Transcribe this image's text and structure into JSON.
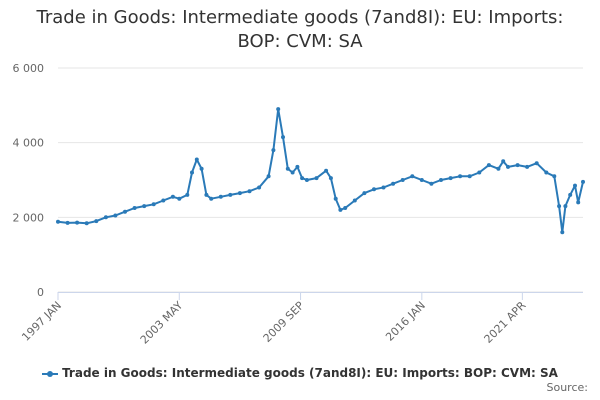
{
  "chart_data": {
    "type": "line",
    "title_lines": [
      "Trade in Goods: Intermediate goods (7and8I): EU: Imports:",
      "BOP: CVM: SA"
    ],
    "xlabel": "",
    "ylabel": "",
    "ylim": [
      0,
      6000
    ],
    "y_ticks": [
      0,
      2000,
      4000,
      6000
    ],
    "y_tick_labels": [
      "0",
      "2 000",
      "4 000",
      "6 000"
    ],
    "x_tick_labels": [
      "1997 JAN",
      "2003 MAY",
      "2009 SEP",
      "2016 JAN",
      "2021 APR"
    ],
    "x_tick_dates": [
      "1997-01",
      "2003-05",
      "2009-09",
      "2016-01",
      "2021-04"
    ],
    "grid": "horizontal",
    "legend_position": "bottom",
    "colors": {
      "series": "#2a7ab8",
      "grid": "#e6e6e6",
      "axis": "#ccd6eb"
    },
    "series": [
      {
        "name": "Trade in Goods: Intermediate goods (7and8I): EU: Imports: BOP: CVM: SA",
        "points": [
          [
            "1997-01",
            1880
          ],
          [
            "1997-07",
            1850
          ],
          [
            "1998-01",
            1860
          ],
          [
            "1998-07",
            1840
          ],
          [
            "1999-01",
            1900
          ],
          [
            "1999-07",
            2000
          ],
          [
            "2000-01",
            2050
          ],
          [
            "2000-07",
            2150
          ],
          [
            "2001-01",
            2250
          ],
          [
            "2001-07",
            2300
          ],
          [
            "2002-01",
            2350
          ],
          [
            "2002-07",
            2450
          ],
          [
            "2003-01",
            2550
          ],
          [
            "2003-05",
            2500
          ],
          [
            "2003-10",
            2600
          ],
          [
            "2004-01",
            3200
          ],
          [
            "2004-04",
            3550
          ],
          [
            "2004-07",
            3300
          ],
          [
            "2004-10",
            2600
          ],
          [
            "2005-01",
            2500
          ],
          [
            "2005-07",
            2550
          ],
          [
            "2006-01",
            2600
          ],
          [
            "2006-07",
            2650
          ],
          [
            "2007-01",
            2700
          ],
          [
            "2007-07",
            2800
          ],
          [
            "2008-01",
            3100
          ],
          [
            "2008-04",
            3800
          ],
          [
            "2008-07",
            4900
          ],
          [
            "2008-10",
            4150
          ],
          [
            "2009-01",
            3300
          ],
          [
            "2009-04",
            3200
          ],
          [
            "2009-07",
            3350
          ],
          [
            "2009-10",
            3050
          ],
          [
            "2010-01",
            3000
          ],
          [
            "2010-07",
            3050
          ],
          [
            "2011-01",
            3250
          ],
          [
            "2011-04",
            3050
          ],
          [
            "2011-07",
            2500
          ],
          [
            "2011-10",
            2200
          ],
          [
            "2012-01",
            2250
          ],
          [
            "2012-07",
            2450
          ],
          [
            "2013-01",
            2650
          ],
          [
            "2013-07",
            2750
          ],
          [
            "2014-01",
            2800
          ],
          [
            "2014-07",
            2900
          ],
          [
            "2015-01",
            3000
          ],
          [
            "2015-07",
            3100
          ],
          [
            "2016-01",
            3000
          ],
          [
            "2016-07",
            2900
          ],
          [
            "2017-01",
            3000
          ],
          [
            "2017-07",
            3050
          ],
          [
            "2018-01",
            3100
          ],
          [
            "2018-07",
            3100
          ],
          [
            "2019-01",
            3200
          ],
          [
            "2019-07",
            3400
          ],
          [
            "2020-01",
            3300
          ],
          [
            "2020-04",
            3500
          ],
          [
            "2020-07",
            3350
          ],
          [
            "2021-01",
            3400
          ],
          [
            "2021-07",
            3350
          ],
          [
            "2022-01",
            3450
          ],
          [
            "2022-07",
            3200
          ],
          [
            "2022-12",
            3100
          ],
          [
            "2023-03",
            2300
          ],
          [
            "2023-05",
            1600
          ],
          [
            "2023-07",
            2300
          ],
          [
            "2023-10",
            2600
          ],
          [
            "2024-01",
            2850
          ],
          [
            "2024-03",
            2400
          ],
          [
            "2024-06",
            2950
          ]
        ]
      }
    ]
  },
  "credit": "Source:"
}
